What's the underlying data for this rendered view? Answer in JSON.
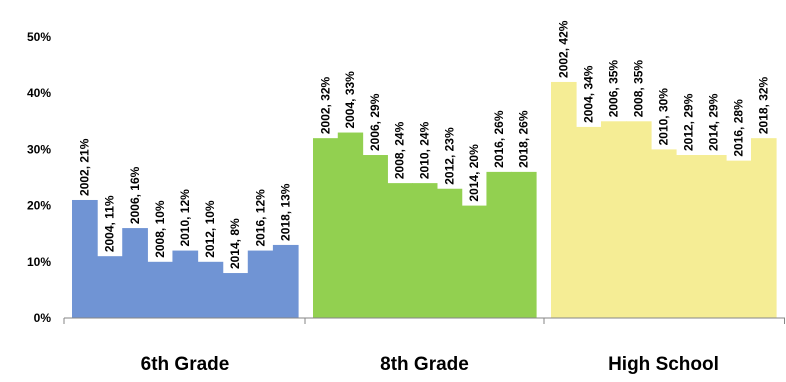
{
  "chart_data": {
    "type": "bar",
    "title": "",
    "xlabel": "",
    "ylabel": "",
    "ylim": [
      0,
      50
    ],
    "yticks": [
      0,
      10,
      20,
      30,
      40,
      50
    ],
    "ytick_labels": [
      "0%",
      "10%",
      "20%",
      "30%",
      "40%",
      "50%"
    ],
    "grid": false,
    "legend": "none",
    "groups": [
      {
        "name": "6th  Grade",
        "color": "#7094d4",
        "categories": [
          "2002",
          "2004",
          "2006",
          "2008",
          "2010",
          "2012",
          "2014",
          "2016",
          "2018"
        ],
        "values": [
          21,
          11,
          16,
          10,
          12,
          10,
          8,
          12,
          13
        ],
        "labels": [
          "2002, 21%",
          "2004, 11%",
          "2006, 16%",
          "2008, 10%",
          "2010, 12%",
          "2012, 10%",
          "2014, 8%",
          "2016, 12%",
          "2018, 13%"
        ]
      },
      {
        "name": "8th Grade",
        "color": "#92d050",
        "categories": [
          "2002",
          "2004",
          "2006",
          "2008",
          "2010",
          "2012",
          "2014",
          "2016",
          "2018"
        ],
        "values": [
          32,
          33,
          29,
          24,
          24,
          23,
          20,
          26,
          26
        ],
        "labels": [
          "2002, 32%",
          "2004, 33%",
          "2006, 29%",
          "2008, 24%",
          "2010, 24%",
          "2012, 23%",
          "2014, 20%",
          "2016, 26%",
          "2018, 26%"
        ]
      },
      {
        "name": "High School",
        "color": "#f5ed95",
        "categories": [
          "2002",
          "2004",
          "2006",
          "2008",
          "2010",
          "2012",
          "2014",
          "2016",
          "2018"
        ],
        "values": [
          42,
          34,
          35,
          35,
          30,
          29,
          29,
          28,
          32
        ],
        "labels": [
          "2002, 42%",
          "2004, 34%",
          "2006, 35%",
          "2008, 35%",
          "2010, 30%",
          "2012, 29%",
          "2014, 29%",
          "2016, 28%",
          "2018, 32%"
        ]
      }
    ]
  }
}
